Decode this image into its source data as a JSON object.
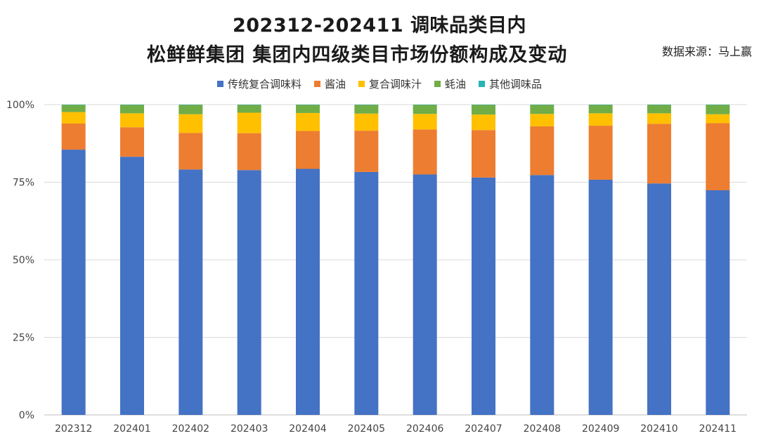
{
  "title": {
    "line1": "202312-202411 调味品类目内",
    "line2": "松鲜鲜集团 集团内四级类目市场份额构成及变动"
  },
  "source_note": "数据来源：马上赢",
  "chart_data": {
    "type": "bar",
    "stacked": true,
    "percent": true,
    "categories": [
      "202312",
      "202401",
      "202402",
      "202403",
      "202404",
      "202405",
      "202406",
      "202407",
      "202408",
      "202409",
      "202410",
      "202411"
    ],
    "y_ticks": [
      "0%",
      "25%",
      "50%",
      "75%",
      "100%"
    ],
    "ylim": [
      0,
      100
    ],
    "grid": true,
    "legend_position": "top",
    "series": [
      {
        "name": "传统复合调味料",
        "color": "#4472C4",
        "values": [
          85.5,
          83.2,
          79.1,
          78.9,
          79.3,
          78.3,
          77.5,
          76.5,
          77.3,
          75.8,
          74.6,
          72.4
        ]
      },
      {
        "name": "酱油",
        "color": "#ED7D31",
        "values": [
          8.4,
          9.5,
          11.8,
          11.9,
          12.2,
          13.3,
          14.5,
          15.3,
          15.7,
          17.4,
          19.2,
          21.6
        ]
      },
      {
        "name": "复合调味汁",
        "color": "#FFC000",
        "values": [
          3.7,
          4.5,
          6.0,
          6.6,
          5.8,
          5.5,
          5.0,
          5.0,
          4.0,
          4.0,
          3.4,
          2.9
        ]
      },
      {
        "name": "蚝油",
        "color": "#70AD47",
        "values": [
          2.3,
          2.7,
          3.0,
          2.5,
          2.6,
          2.8,
          2.9,
          3.1,
          2.9,
          2.7,
          2.7,
          3.0
        ]
      },
      {
        "name": "其他调味品",
        "color": "#26B5B5",
        "values": [
          0.1,
          0.1,
          0.1,
          0.1,
          0.1,
          0.1,
          0.1,
          0.1,
          0.1,
          0.1,
          0.1,
          0.1
        ]
      }
    ]
  }
}
